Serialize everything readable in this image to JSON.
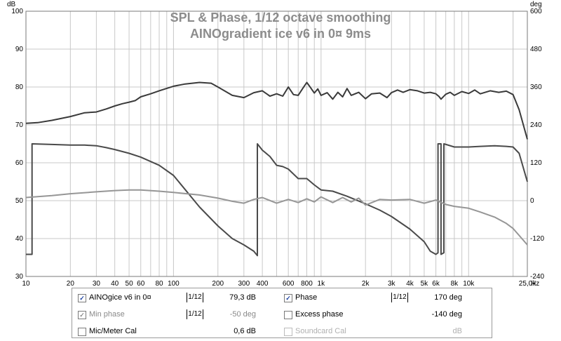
{
  "chart_data": {
    "type": "line",
    "title": "SPL & Phase, 1/12 octave smoothing",
    "subtitle": "AINOgradient ice v6 in 0¤ 9ms",
    "x_scale": "log",
    "xlim": [
      10,
      25000
    ],
    "x_ticks": [
      "10",
      "20",
      "30",
      "40",
      "50",
      "60",
      "80",
      "100",
      "200",
      "300",
      "400",
      "600",
      "800",
      "1k",
      "2k",
      "3k",
      "4k",
      "5k",
      "6k",
      "8k",
      "10k",
      "25,0k"
    ],
    "x_unit": "Hz",
    "ylabel_left": "dB",
    "ylim_left": [
      30,
      100
    ],
    "y_ticks_left": [
      "30",
      "40",
      "50",
      "60",
      "70",
      "80",
      "90",
      "100"
    ],
    "ylabel_right": "deg",
    "ylim_right": [
      -240,
      600
    ],
    "y_ticks_right": [
      "-240",
      "-120",
      "0",
      "120",
      "240",
      "360",
      "480",
      "600"
    ],
    "grid": true,
    "series": [
      {
        "name": "AINOgice v6 in 0¤",
        "axis": "left",
        "color": "#3a3a3a",
        "points": [
          [
            10,
            70.4
          ],
          [
            12,
            70.6
          ],
          [
            15,
            71.2
          ],
          [
            20,
            72.2
          ],
          [
            25,
            73.2
          ],
          [
            30,
            73.4
          ],
          [
            35,
            74.2
          ],
          [
            40,
            75
          ],
          [
            45,
            75.6
          ],
          [
            50,
            76
          ],
          [
            55,
            76.4
          ],
          [
            60,
            77.4
          ],
          [
            70,
            78.2
          ],
          [
            80,
            79
          ],
          [
            100,
            80.2
          ],
          [
            120,
            80.8
          ],
          [
            150,
            81.2
          ],
          [
            180,
            81
          ],
          [
            200,
            80
          ],
          [
            250,
            77.8
          ],
          [
            300,
            77.2
          ],
          [
            350,
            78.5
          ],
          [
            400,
            79
          ],
          [
            450,
            77.6
          ],
          [
            500,
            78.2
          ],
          [
            550,
            77.6
          ],
          [
            600,
            80
          ],
          [
            650,
            78
          ],
          [
            700,
            77.8
          ],
          [
            750,
            79.6
          ],
          [
            800,
            81.2
          ],
          [
            850,
            79.8
          ],
          [
            900,
            78.4
          ],
          [
            950,
            79.5
          ],
          [
            1000,
            77.8
          ],
          [
            1100,
            78.5
          ],
          [
            1200,
            76.8
          ],
          [
            1300,
            78.6
          ],
          [
            1400,
            77.4
          ],
          [
            1500,
            79.6
          ],
          [
            1600,
            77.8
          ],
          [
            1800,
            78.6
          ],
          [
            2000,
            76.9
          ],
          [
            2200,
            78.2
          ],
          [
            2500,
            78.4
          ],
          [
            2800,
            77.2
          ],
          [
            3000,
            78.5
          ],
          [
            3300,
            79.2
          ],
          [
            3600,
            78.6
          ],
          [
            4000,
            79.3
          ],
          [
            4500,
            79
          ],
          [
            5000,
            78.4
          ],
          [
            5500,
            78.6
          ],
          [
            6000,
            78.2
          ],
          [
            6300,
            77.5
          ],
          [
            6500,
            76.8
          ],
          [
            7000,
            78.1
          ],
          [
            7500,
            78.6
          ],
          [
            8000,
            77.8
          ],
          [
            9000,
            78.8
          ],
          [
            10000,
            78.3
          ],
          [
            11000,
            79.2
          ],
          [
            12000,
            78.2
          ],
          [
            14000,
            79
          ],
          [
            16000,
            78.6
          ],
          [
            18000,
            78.9
          ],
          [
            20000,
            78
          ],
          [
            22000,
            74
          ],
          [
            25000,
            66.2
          ]
        ]
      },
      {
        "name": "Phase",
        "axis": "right",
        "color": "#4a4a4a",
        "points": [
          [
            10,
            -170
          ],
          [
            11,
            -170
          ],
          [
            11,
            180
          ],
          [
            15,
            178
          ],
          [
            20,
            176
          ],
          [
            25,
            176
          ],
          [
            30,
            174
          ],
          [
            35,
            168
          ],
          [
            40,
            162
          ],
          [
            50,
            150
          ],
          [
            60,
            138
          ],
          [
            80,
            112
          ],
          [
            100,
            80
          ],
          [
            150,
            -20
          ],
          [
            200,
            -80
          ],
          [
            250,
            -120
          ],
          [
            300,
            -140
          ],
          [
            350,
            -160
          ],
          [
            370,
            -174
          ],
          [
            370,
            180
          ],
          [
            400,
            160
          ],
          [
            450,
            140
          ],
          [
            500,
            112
          ],
          [
            550,
            108
          ],
          [
            600,
            100
          ],
          [
            700,
            70
          ],
          [
            800,
            70
          ],
          [
            900,
            50
          ],
          [
            1000,
            34
          ],
          [
            1200,
            30
          ],
          [
            1500,
            14
          ],
          [
            2000,
            -10
          ],
          [
            2500,
            -30
          ],
          [
            3000,
            -50
          ],
          [
            4000,
            -90
          ],
          [
            5000,
            -130
          ],
          [
            5500,
            -160
          ],
          [
            6000,
            -170
          ],
          [
            6200,
            -165
          ],
          [
            6200,
            180
          ],
          [
            6500,
            180
          ],
          [
            6500,
            -170
          ],
          [
            6800,
            -165
          ],
          [
            6800,
            180
          ],
          [
            8000,
            170
          ],
          [
            10000,
            170
          ],
          [
            12000,
            172
          ],
          [
            15000,
            174
          ],
          [
            18000,
            172
          ],
          [
            20000,
            170
          ],
          [
            22000,
            150
          ],
          [
            25000,
            60
          ]
        ]
      },
      {
        "name": "Min phase",
        "axis": "right",
        "color": "#969696",
        "points": [
          [
            10,
            10
          ],
          [
            15,
            16
          ],
          [
            20,
            22
          ],
          [
            30,
            28
          ],
          [
            40,
            32
          ],
          [
            50,
            34
          ],
          [
            60,
            34
          ],
          [
            80,
            30
          ],
          [
            100,
            26
          ],
          [
            150,
            18
          ],
          [
            200,
            8
          ],
          [
            250,
            -2
          ],
          [
            300,
            -8
          ],
          [
            350,
            4
          ],
          [
            400,
            10
          ],
          [
            500,
            -8
          ],
          [
            600,
            4
          ],
          [
            700,
            -6
          ],
          [
            800,
            6
          ],
          [
            900,
            -4
          ],
          [
            1000,
            12
          ],
          [
            1200,
            -6
          ],
          [
            1400,
            10
          ],
          [
            1600,
            -4
          ],
          [
            1800,
            8
          ],
          [
            2000,
            -14
          ],
          [
            2500,
            4
          ],
          [
            3000,
            2
          ],
          [
            4000,
            4
          ],
          [
            5000,
            -8
          ],
          [
            6000,
            2
          ],
          [
            7000,
            -12
          ],
          [
            8000,
            -18
          ],
          [
            10000,
            -24
          ],
          [
            12000,
            -36
          ],
          [
            15000,
            -52
          ],
          [
            18000,
            -72
          ],
          [
            20000,
            -88
          ],
          [
            22000,
            -110
          ],
          [
            25000,
            -140
          ]
        ]
      }
    ]
  },
  "legend": {
    "rows": [
      {
        "check": true,
        "label": "AINOgice v6 in 0¤",
        "smoothing": "1/12",
        "value": "79,3 dB",
        "check2": true,
        "label2": "Phase",
        "smoothing2": "1/12",
        "value2": "170 deg"
      },
      {
        "check": true,
        "label": "Min phase",
        "smoothing": "1/12",
        "value": "-50 deg",
        "check2": false,
        "label2": "Excess phase",
        "value2": "-140 deg"
      },
      {
        "check": false,
        "label": "Mic/Meter Cal",
        "value": "0,6 dB",
        "check2": false,
        "label2": "Soundcard Cal",
        "value2": "dB"
      }
    ]
  }
}
